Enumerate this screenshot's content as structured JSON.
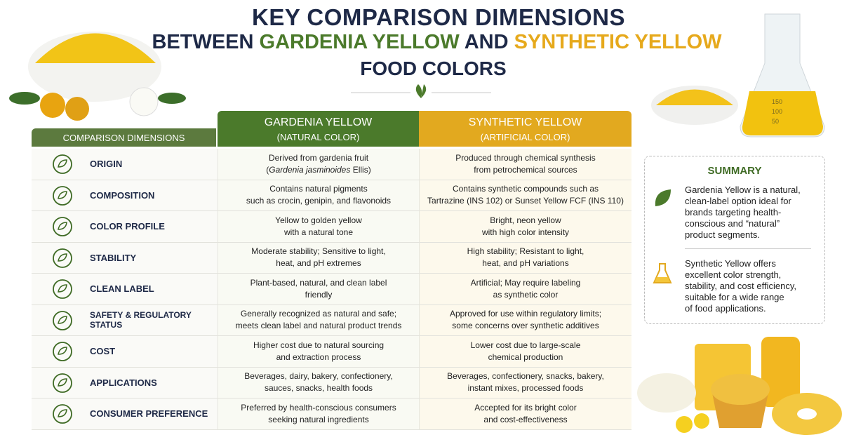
{
  "title": {
    "line1": "KEY COMPARISON DIMENSIONS",
    "line2": [
      "BETWEEN",
      "GARDENIA YELLOW",
      "AND",
      "SYNTHETIC YELLOW"
    ],
    "line3": "FOOD COLORS"
  },
  "table": {
    "dimension_header": "COMPARISON DIMENSIONS",
    "columns": [
      {
        "name": "GARDENIA YELLOW",
        "sub": "(NATURAL COLOR)",
        "color": "#4b7a2b"
      },
      {
        "name": "SYNTHETIC YELLOW",
        "sub": "(ARTIFICIAL COLOR)",
        "color": "#e2a91f"
      }
    ],
    "rows": [
      {
        "dimension": "ORIGIN",
        "cells": [
          [
            "Derived from gardenia fruit",
            [
              {
                "text": "("
              },
              {
                "text": "Gardenia jasminoides",
                "italic": true
              },
              {
                "text": " Ellis)"
              }
            ]
          ],
          [
            "Produced through chemical synthesis",
            "from petrochemical sources"
          ]
        ]
      },
      {
        "dimension": "COMPOSITION",
        "cells": [
          [
            "Contains natural pigments",
            "such as crocin, genipin, and flavonoids"
          ],
          [
            "Contains synthetic compounds such as",
            "Tartrazine (INS 102) or Sunset Yellow FCF (INS 110)"
          ]
        ]
      },
      {
        "dimension": "COLOR PROFILE",
        "cells": [
          [
            "Yellow to golden yellow",
            "with a natural tone"
          ],
          [
            "Bright, neon yellow",
            "with high color intensity"
          ]
        ]
      },
      {
        "dimension": "STABILITY",
        "cells": [
          [
            "Moderate stability; Sensitive to light,",
            "heat, and pH extremes"
          ],
          [
            "High stability; Resistant to light,",
            "heat, and pH variations"
          ]
        ]
      },
      {
        "dimension": "CLEAN LABEL",
        "cells": [
          [
            "Plant-based, natural, and clean label",
            "friendly"
          ],
          [
            "Artificial; May require labeling",
            "as synthetic color"
          ]
        ]
      },
      {
        "dimension": "SAFETY & REGULATORY STATUS",
        "cells": [
          [
            "Generally recognized as natural and safe;",
            "meets clean label and natural product trends"
          ],
          [
            "Approved for use within regulatory limits;",
            "some concerns over synthetic additives"
          ]
        ]
      },
      {
        "dimension": "COST",
        "cells": [
          [
            "Higher cost due to natural sourcing",
            "and extraction process"
          ],
          [
            "Lower cost due to large-scale",
            "chemical production"
          ]
        ]
      },
      {
        "dimension": "APPLICATIONS",
        "cells": [
          [
            "Beverages, dairy, bakery, confectionery,",
            "sauces, snacks, health foods"
          ],
          [
            "Beverages, confectionery, snacks, bakery,",
            "instant mixes, processed foods"
          ]
        ]
      },
      {
        "dimension": "CONSUMER PREFERENCE",
        "cells": [
          [
            "Preferred by health-conscious consumers",
            "seeking natural ingredients"
          ],
          [
            "Accepted for its bright color",
            "and cost-effectiveness"
          ]
        ]
      }
    ]
  },
  "summary": {
    "title": "SUMMARY",
    "items": [
      [
        "Gardenia Yellow is a natural,",
        "clean-label option ideal for",
        "brands targeting health-",
        "conscious and “natural”",
        "product segments."
      ],
      [
        "Synthetic Yellow offers",
        "excellent color strength,",
        "stability, and cost efficiency,",
        "suitable for a wide range",
        "of food applications."
      ]
    ]
  },
  "flask_marks": [
    "150",
    "100",
    "50"
  ]
}
